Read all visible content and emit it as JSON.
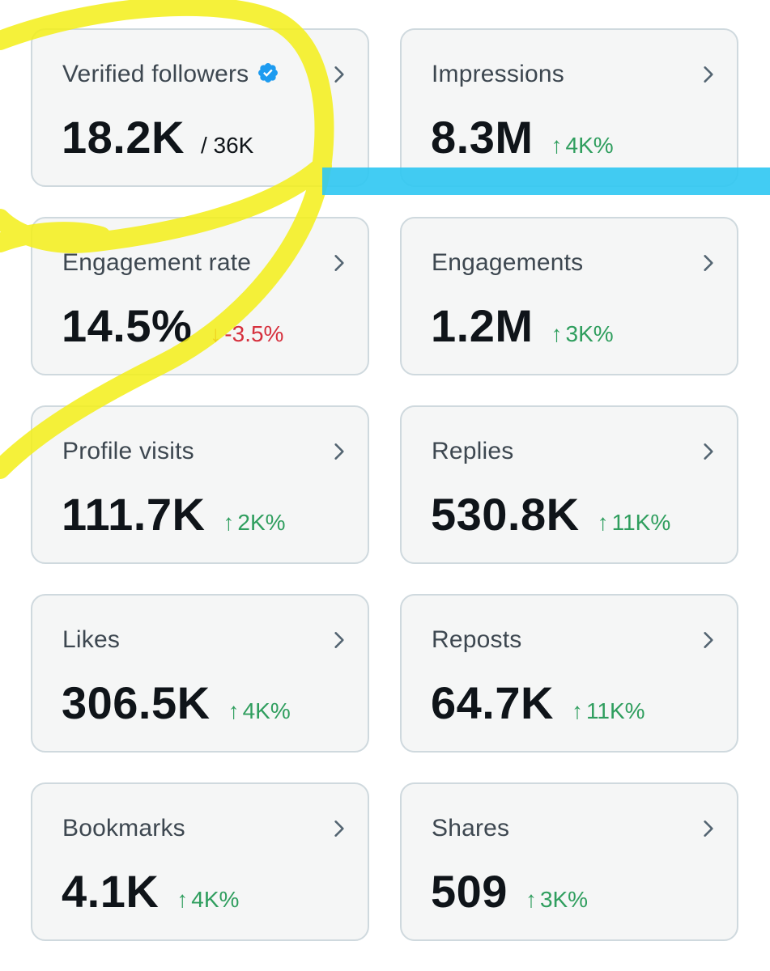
{
  "colors": {
    "positive": "#2f9e5e",
    "negative": "#d6303d",
    "verified_badge": "#1d9bf0",
    "highlight_yellow": "#f3ef18",
    "highlight_blue": "#2ec7f2"
  },
  "icons": {
    "verified": "verified-badge-icon",
    "chevron": "chevron-right-icon",
    "up": "arrow-up",
    "down": "arrow-down"
  },
  "cards": [
    {
      "label": "Verified followers",
      "value": "18.2K",
      "sub": "/ 36K",
      "delta": "",
      "arrow": ""
    },
    {
      "label": "Impressions",
      "value": "8.3M",
      "sub": "",
      "delta": "4K%",
      "arrow": "↑"
    },
    {
      "label": "Engagement rate",
      "value": "14.5%",
      "sub": "",
      "delta": "-3.5%",
      "arrow": "↓"
    },
    {
      "label": "Engagements",
      "value": "1.2M",
      "sub": "",
      "delta": "3K%",
      "arrow": "↑"
    },
    {
      "label": "Profile visits",
      "value": "111.7K",
      "sub": "",
      "delta": "2K%",
      "arrow": "↑"
    },
    {
      "label": "Replies",
      "value": "530.8K",
      "sub": "",
      "delta": "11K%",
      "arrow": "↑"
    },
    {
      "label": "Likes",
      "value": "306.5K",
      "sub": "",
      "delta": "4K%",
      "arrow": "↑"
    },
    {
      "label": "Reposts",
      "value": "64.7K",
      "sub": "",
      "delta": "11K%",
      "arrow": "↑"
    },
    {
      "label": "Bookmarks",
      "value": "4.1K",
      "sub": "",
      "delta": "4K%",
      "arrow": "↑"
    },
    {
      "label": "Shares",
      "value": "509",
      "sub": "",
      "delta": "3K%",
      "arrow": "↑"
    }
  ]
}
